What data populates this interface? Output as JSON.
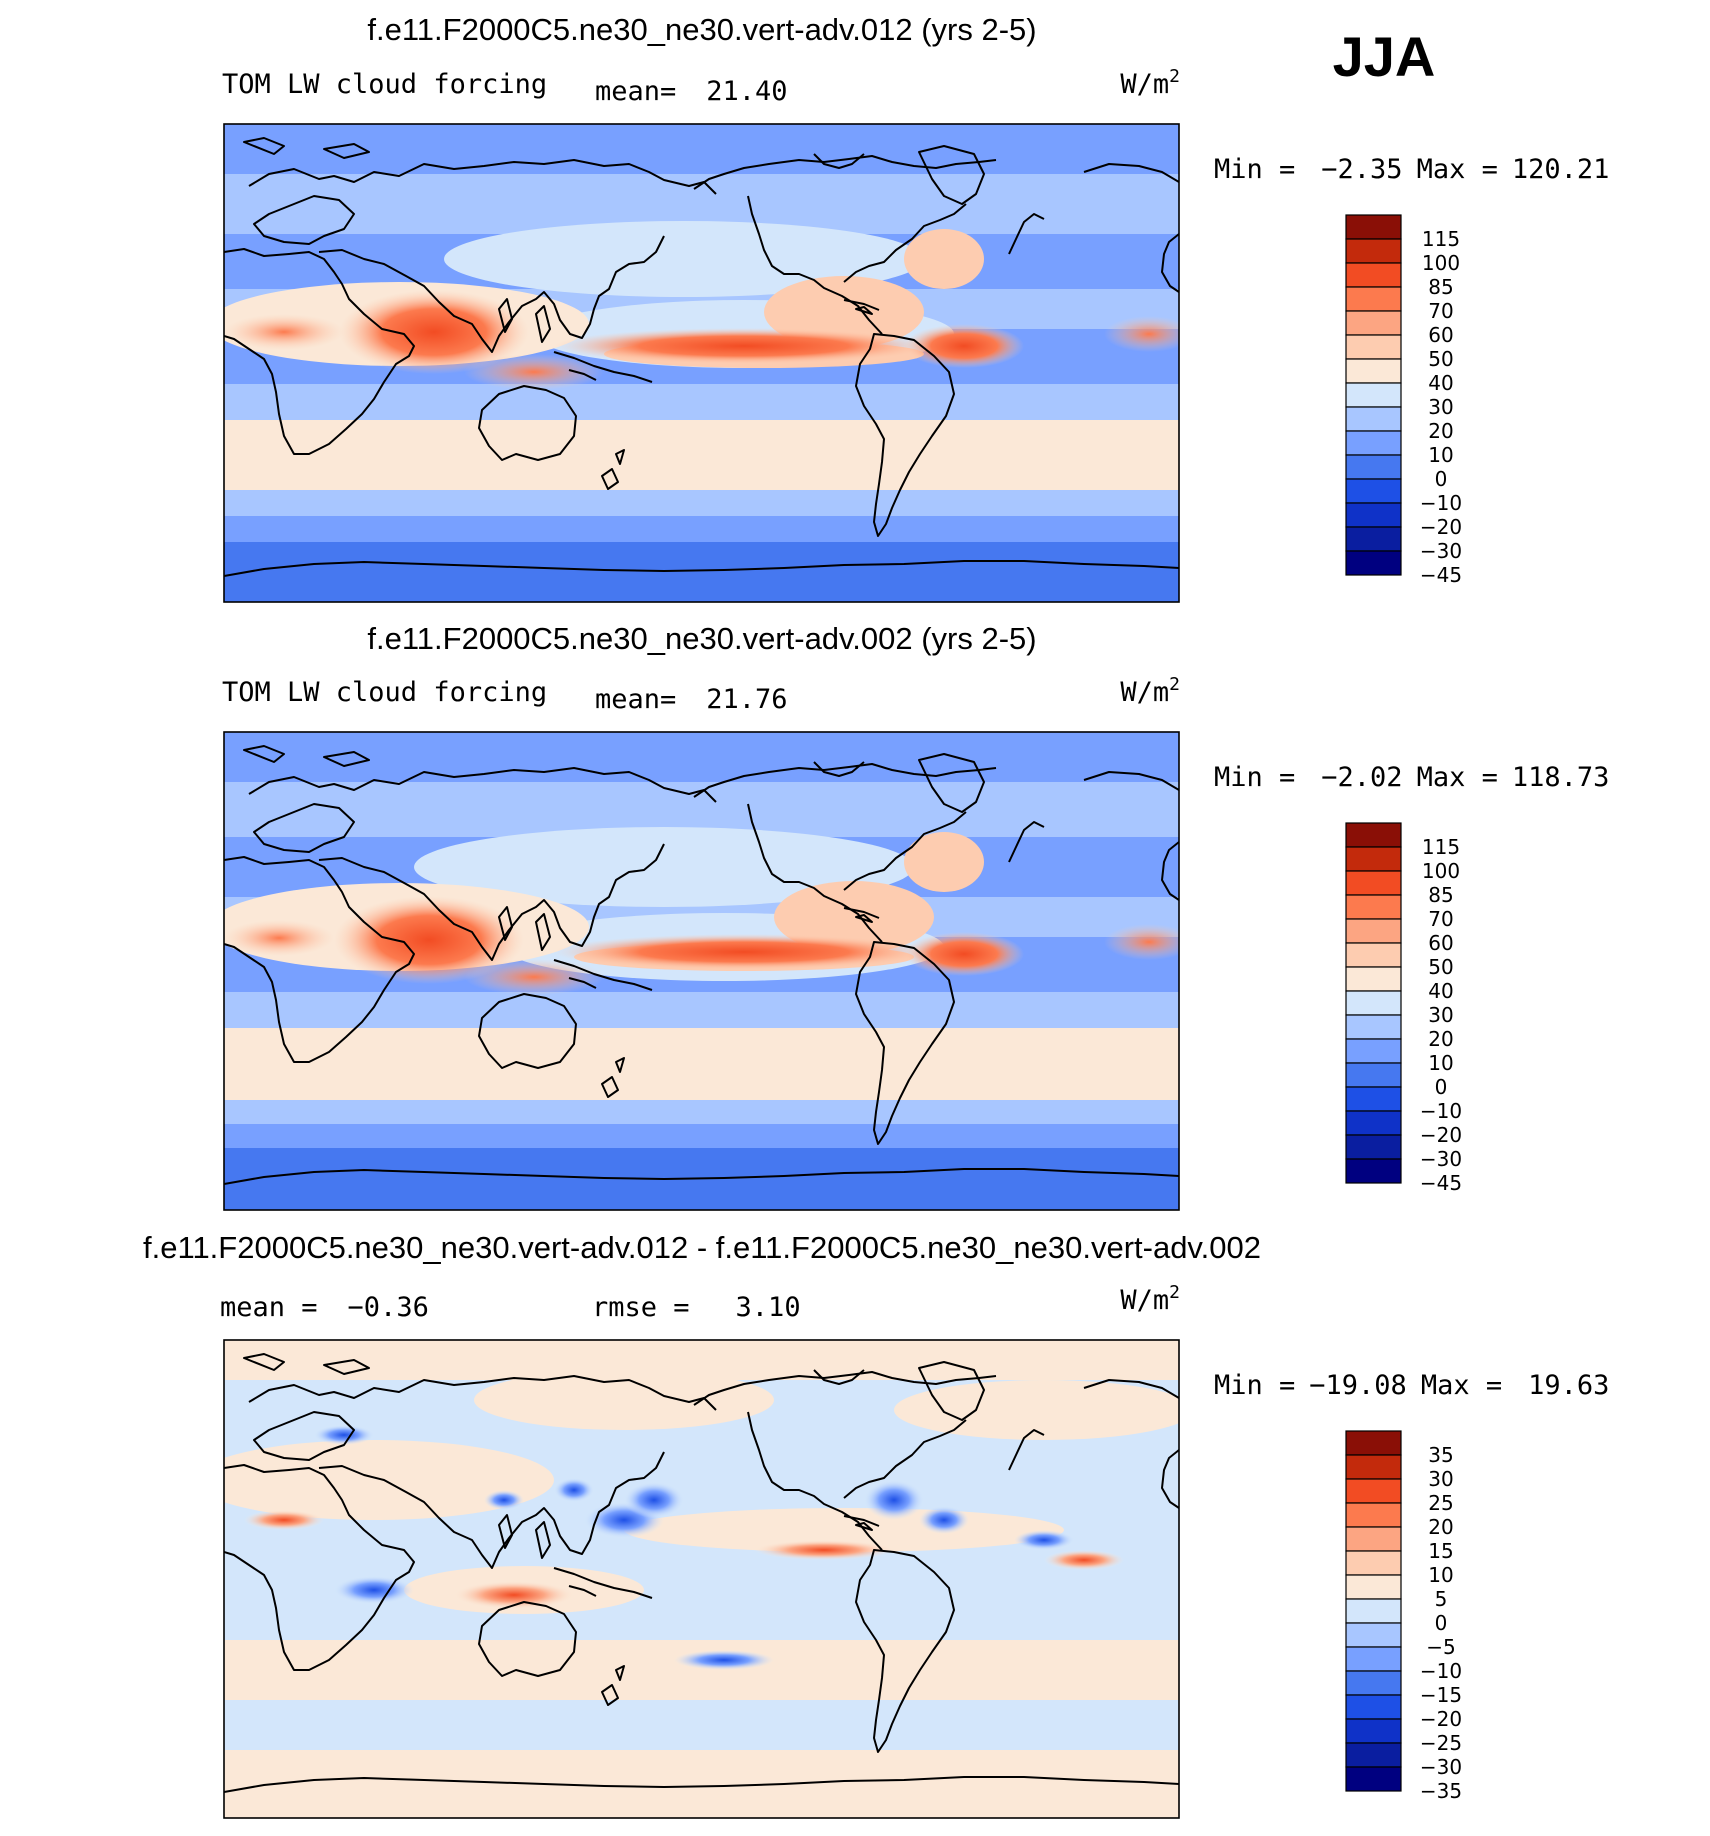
{
  "season": "JJA",
  "panels": [
    {
      "title": "f.e11.F2000C5.ne30_ne30.vert-adv.012 (yrs 2-5)",
      "variable": "TOM LW cloud forcing",
      "stat1_label": "mean=",
      "stat1_value": "21.40",
      "stat2_label": "",
      "stat2_value": "",
      "units": "W/m",
      "units_sup": "2",
      "min_label": "Min =",
      "min_value": "−2.35",
      "max_label": "Max =",
      "max_value": "120.21",
      "kind": "field",
      "colorbar_labels": [
        "115",
        "100",
        "85",
        "70",
        "60",
        "50",
        "40",
        "30",
        "20",
        "10",
        "0",
        "−10",
        "−20",
        "−30",
        "−45"
      ]
    },
    {
      "title": "f.e11.F2000C5.ne30_ne30.vert-adv.002 (yrs 2-5)",
      "variable": "TOM LW cloud forcing",
      "stat1_label": "mean=",
      "stat1_value": "21.76",
      "stat2_label": "",
      "stat2_value": "",
      "units": "W/m",
      "units_sup": "2",
      "min_label": "Min =",
      "min_value": "−2.02",
      "max_label": "Max =",
      "max_value": "118.73",
      "kind": "field",
      "colorbar_labels": [
        "115",
        "100",
        "85",
        "70",
        "60",
        "50",
        "40",
        "30",
        "20",
        "10",
        "0",
        "−10",
        "−20",
        "−30",
        "−45"
      ]
    },
    {
      "title": "f.e11.F2000C5.ne30_ne30.vert-adv.012 - f.e11.F2000C5.ne30_ne30.vert-adv.002",
      "variable": "",
      "stat1_label": "mean =",
      "stat1_value": "−0.36",
      "stat2_label": "rmse =",
      "stat2_value": "3.10",
      "units": "W/m",
      "units_sup": "2",
      "min_label": "Min =",
      "min_value": "−19.08",
      "max_label": "Max =",
      "max_value": "19.63",
      "kind": "diff",
      "colorbar_labels": [
        "35",
        "30",
        "25",
        "20",
        "15",
        "10",
        "5",
        "0",
        "−5",
        "−10",
        "−15",
        "−20",
        "−25",
        "−30",
        "−35"
      ]
    }
  ],
  "colors": {
    "palette": [
      "#000080",
      "#0a1ea0",
      "#0f32c8",
      "#1e50e6",
      "#4678f0",
      "#78a0ff",
      "#a8c6ff",
      "#d3e6fb",
      "#fbe8d7",
      "#fdccb0",
      "#fca582",
      "#fc7a4e",
      "#f24c23",
      "#c32a0c",
      "#8a0f06"
    ]
  }
}
